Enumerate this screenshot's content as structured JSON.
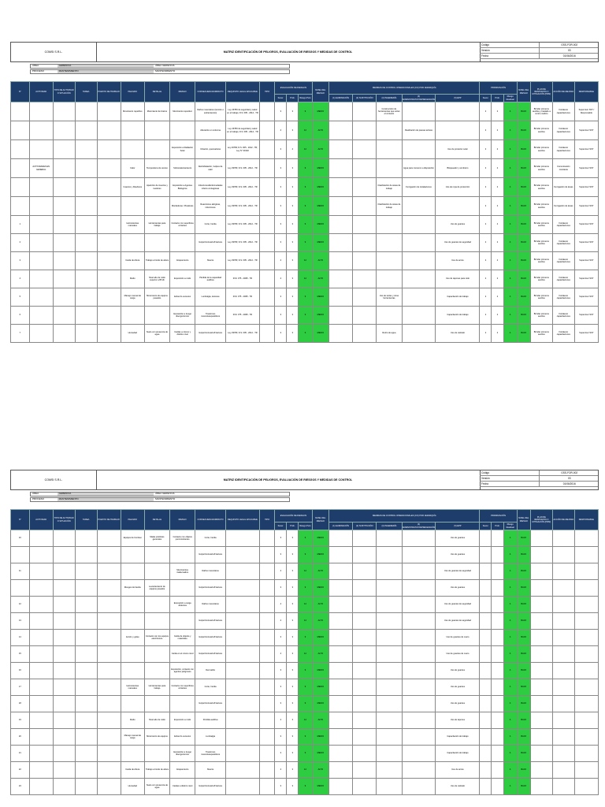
{
  "header": {
    "company": "COMSI S.R.L.",
    "title": "MATRIZ IDENTIFICACIÓN DE PELIGROS, EVALUACIÓN DE RIESGOS Y MEDIDAS DE CONTROL",
    "meta": [
      {
        "label": "Código",
        "value": "GSS-FOR-002"
      },
      {
        "label": "Versión",
        "value": "03"
      },
      {
        "label": "Fecha",
        "value": "01/06/2016"
      }
    ]
  },
  "info": {
    "row1": [
      "ÁREA",
      "GERENCIA",
      "ÁREA GERENCIA"
    ],
    "row2": [
      "PROCESO",
      "MANTENIMIENTO",
      "MANTENIMIENTO"
    ]
  },
  "columns": {
    "nro": "N°",
    "actividad": "ACTIVIDAD",
    "tipo": "TIPO DE ACTIVIDAD O SITUACIÓN",
    "tarea": "TAREA",
    "puesto": "PUESTO DE TRABAJO",
    "peligro": "PELIGRO",
    "detalle": "DETALLE",
    "riesgo": "RIESGO",
    "consecuencia": "CONSECUENCIA/IMPACTO",
    "requisito": "REQUISITO LEGAL APLICABLE",
    "tipo2": "TIPO",
    "evaluacion": "EVALUACIÓN DE RIESGOS",
    "sev": "Sever.",
    "prob": "Prob.",
    "rp": "Riesgo Puro",
    "nivel": "NIVEL DEL RIESGO",
    "medidas": "MEDIDAS DE CONTROL OPERACIONALES (CO) POR JERARQUÍA",
    "elim": "(1) ELIMINACIÓN",
    "sust": "(2) SUSTITUCIÓN",
    "ing": "(3) INGENIERÍA",
    "adm": "(4) ADMINISTRATIVOS/PREVENCIÓN",
    "epp": "(5) EPP",
    "prior": "PRIORIZACIÓN",
    "rr": "Riesgo Residual",
    "nivel2": "NIVEL DEL RIESGO",
    "planes": "PLAN DE RESPUESTA O MITIGACIÓN (PRM)",
    "accion": "ACCIÓN DE MEJORA",
    "resp": "RESPONSABLE"
  },
  "table1": [
    {
      "nro": "",
      "act": "",
      "pel": "Movimiento repetitivo",
      "det": "Movimiento de brazos",
      "rie": "Movimiento repetitivo",
      "con": "Daños musculares (tensión o estiramientos)",
      "req": "Ley 29783 de seguridad y salud en el trabajo; D.S. 005 - 2012 - TR",
      "s": "3",
      "p": "3",
      "v": "9",
      "n": "MEDIO",
      "ing": "Construcción de herramientas que eviten el contacto",
      "adm": "",
      "epp": "",
      "s2": "2",
      "p2": "2",
      "v2": "4",
      "n2": "BAJO",
      "pl": "Brindar primeros auxilios y traslado a centro médico",
      "ac": "Fortalecer capacitaciones",
      "rs": "Supervisor SST / Responsable"
    },
    {
      "nro": "",
      "act": "",
      "pel": "",
      "det": "",
      "rie": "",
      "con": "Alteración en columna",
      "req": "Ley 29783 de seguridad y salud en el trabajo; D.S. 005 - 2012 - TR",
      "s": "4",
      "p": "3",
      "v": "12",
      "n": "ALTO",
      "ing": "",
      "adm": "Realización de pausas activas",
      "epp": "",
      "s2": "2",
      "p2": "2",
      "v2": "4",
      "n2": "BAJO",
      "pl": "Brindar primeros auxilios",
      "ac": "Fortalecer capacitaciones",
      "rs": "Supervisor SST"
    },
    {
      "nro": "",
      "act": "",
      "pel": "",
      "det": "",
      "rie": "Exposición a Radiación Solar",
      "con": "Irritación, quemaduras",
      "req": "Ley 29783; D.S. 005 - 2012 - TR; Ley N° 30102",
      "s": "3",
      "p": "4",
      "v": "12",
      "n": "ALTO",
      "ing": "",
      "adm": "",
      "epp": "Uso de protector solar",
      "s2": "2",
      "p2": "2",
      "v2": "4",
      "n2": "BAJO",
      "pl": "Brindar primeros auxilios",
      "ac": "Fortalecer capacitaciones",
      "rs": "Supervisor SST"
    },
    {
      "nro": "",
      "act": "ACTIVIDADES EN GENERAL",
      "pel": "Calor",
      "det": "Temperatura de verano",
      "rie": "Sobrecalentamiento",
      "con": "Deshidratación, Golpes de calor",
      "req": "Ley 29783; D.S. 005 - 2012 - TR",
      "s": "3",
      "p": "3",
      "v": "9",
      "n": "MEDIO",
      "ing": "",
      "adm": "Agua para consumo a disposición",
      "epp": "Bloqueador y sombrero",
      "s2": "2",
      "p2": "2",
      "v2": "4",
      "n2": "BAJO",
      "pl": "Brindar primeros auxilios",
      "ac": "Comunicación constante",
      "rs": "Supervisor SST"
    },
    {
      "nro": "",
      "act": "",
      "pel": "Insectos y Roedores",
      "det": "Aparición de insectos y roedores",
      "rie": "Exposición a Agentes Biológicos",
      "con": "Infecciones/Enfermedades infecto contagiosas",
      "req": "Ley 29783; D.S. 005 - 2012 - TR",
      "s": "3",
      "p": "3",
      "v": "9",
      "n": "MEDIO",
      "ing": "Clasificación de áreas de trabajo",
      "adm": "Fumigación de instalaciones",
      "epp": "Uso de ropa de protección",
      "s2": "2",
      "p2": "2",
      "v2": "4",
      "n2": "BAJO",
      "pl": "Brindar primeros auxilios",
      "ac": "Fumigación de áreas",
      "rs": "Supervisor SST"
    },
    {
      "nro": "",
      "act": "",
      "pel": "",
      "det": "",
      "rie": "Mordeduras / Picaduras",
      "con": "Reacciones alérgicas, infecciones",
      "req": "Ley 29783; D.S. 005 - 2012 - TR",
      "s": "3",
      "p": "3",
      "v": "9",
      "n": "MEDIO",
      "ing": "Clasificación de áreas de trabajo",
      "adm": "",
      "epp": "",
      "s2": "2",
      "p2": "2",
      "v2": "4",
      "n2": "BAJO",
      "pl": "Brindar primeros auxilios",
      "ac": "Fumigación de áreas",
      "rs": "Supervisor SST"
    },
    {
      "nro": "1",
      "act": "",
      "pel": "Herramientas manuales",
      "det": "Herramientas para trabajo",
      "rie": "Contacto con superficies cortantes",
      "con": "Corte, herida",
      "req": "Ley 29783; D.S. 005 - 2012 - TR",
      "s": "3",
      "p": "3",
      "v": "9",
      "n": "MEDIO",
      "ing": "",
      "adm": "",
      "epp": "Uso de guantes",
      "s2": "2",
      "p2": "2",
      "v2": "4",
      "n2": "BAJO",
      "pl": "Brindar primeros auxilios",
      "ac": "Fortalecer capacitaciones",
      "rs": "Supervisor SST"
    },
    {
      "nro": "2",
      "act": "",
      "pel": "",
      "det": "",
      "rie": "",
      "con": "Golpe/Contusión/Fractura",
      "req": "Ley 29783; D.S. 005 - 2012 - TR",
      "s": "3",
      "p": "3",
      "v": "9",
      "n": "MEDIO",
      "ing": "",
      "adm": "",
      "epp": "Uso de guantes de seguridad",
      "s2": "2",
      "p2": "2",
      "v2": "4",
      "n2": "BAJO",
      "pl": "Brindar primeros auxilios",
      "ac": "Fortalecer capacitaciones",
      "rs": "Supervisor SST"
    },
    {
      "nro": "3",
      "act": "",
      "pel": "Caída de Altura",
      "det": "Trabajo a borde de altura",
      "rie": "Atrapamiento",
      "con": "Muerte",
      "req": "Ley 29783; D.S. 005 - 2012 - TR",
      "s": "4",
      "p": "3",
      "v": "12",
      "n": "ALTO",
      "ing": "",
      "adm": "",
      "epp": "Uso de arnés",
      "s2": "2",
      "p2": "2",
      "v2": "4",
      "n2": "BAJO",
      "pl": "Brindar primeros auxilios",
      "ac": "Fortalecer capacitaciones",
      "rs": "Supervisor SST"
    },
    {
      "nro": "4",
      "act": "",
      "pel": "Ruido",
      "det": "Nivel alto de ruido superior a 85 db",
      "rie": "Exposición a ruido",
      "con": "Pérdida de la capacidad auditiva",
      "req": "R.M. 375 - 2008 - TR",
      "s": "4",
      "p": "3",
      "v": "12",
      "n": "ALTO",
      "ing": "",
      "adm": "",
      "epp": "Uso de tapones para oído",
      "s2": "2",
      "p2": "2",
      "v2": "4",
      "n2": "BAJO",
      "pl": "Brindar primeros auxilios",
      "ac": "Fortalecer capacitaciones",
      "rs": "Supervisor SST"
    },
    {
      "nro": "5",
      "act": "",
      "pel": "Manejo manual de carga",
      "det": "Movimiento de equipos pesados",
      "rie": "Esfuerzo excesivo",
      "con": "Lumbalgia, lesiones",
      "req": "R.M. 375 - 2008 - TR",
      "s": "3",
      "p": "3",
      "v": "9",
      "n": "MEDIO",
      "ing": "Uso de tecles y otras herramientas",
      "adm": "",
      "epp": "Capacitación de trabajo",
      "s2": "2",
      "p2": "2",
      "v2": "4",
      "n2": "BAJO",
      "pl": "Brindar primeros auxilios",
      "ac": "Fortalecer capacitaciones",
      "rs": "Supervisor SST"
    },
    {
      "nro": "6",
      "act": "",
      "pel": "",
      "det": "",
      "rie": "Exposición a riesgo disergonómico",
      "con": "Trastornos musculoesqueléticos",
      "req": "R.M. 375 - 2008 - TR",
      "s": "3",
      "p": "3",
      "v": "9",
      "n": "MEDIO",
      "ing": "",
      "adm": "",
      "epp": "Capacitación de trabajo",
      "s2": "2",
      "p2": "2",
      "v2": "4",
      "n2": "BAJO",
      "pl": "Brindar primeros auxilios",
      "ac": "Fortalecer capacitaciones",
      "rs": "Supervisor SST"
    },
    {
      "nro": "7",
      "act": "",
      "pel": "Humedad",
      "det": "Suelo con presencia de agua",
      "rie": "Caídas a mismo y distinto nivel",
      "con": "Golpe/Contusión/Fractura",
      "req": "Ley 29783; D.S. 005 - 2012 - TR",
      "s": "3",
      "p": "3",
      "v": "9",
      "n": "MEDIO",
      "ing": "Retiro de agua",
      "adm": "",
      "epp": "Uso de calzado",
      "s2": "2",
      "p2": "2",
      "v2": "4",
      "n2": "BAJO",
      "pl": "Brindar primeros auxilios",
      "ac": "Fortalecer capacitaciones",
      "rs": "Supervisor SST"
    }
  ],
  "table2": [
    {
      "nro": "10",
      "pel": "Equipos de bombeo",
      "det": "Malas prácticas generales",
      "rie": "Contacto con objetos punzocortantes",
      "con": "Corte, herida",
      "s": "3",
      "p": "3",
      "v": "9",
      "n": "MEDIO",
      "epp": "Uso de guantes",
      "v2": "4",
      "n2": "BAJO"
    },
    {
      "nro": "",
      "pel": "",
      "det": "",
      "rie": "",
      "con": "Golpe/Contusión/Fractura",
      "s": "3",
      "p": "3",
      "v": "9",
      "n": "MEDIO",
      "epp": "Uso de guantes",
      "v2": "4",
      "n2": "BAJO"
    },
    {
      "nro": "11",
      "pel": "",
      "det": "",
      "rie": "Movimientos inadecuados",
      "con": "Daños musculares",
      "s": "4",
      "p": "3",
      "v": "12",
      "n": "ALTO",
      "epp": "Uso de guantes de seguridad",
      "v2": "4",
      "n2": "BAJO"
    },
    {
      "nro": "",
      "pel": "Riesgos de banda",
      "det": "Levantamiento de equipos pesados",
      "rie": "",
      "con": "Golpe/Contusión/Fractura",
      "s": "3",
      "p": "3",
      "v": "9",
      "n": "MEDIO",
      "epp": "Uso de guantes",
      "v2": "4",
      "n2": "BAJO"
    },
    {
      "nro": "12",
      "pel": "",
      "det": "",
      "rie": "Exposición a carga dinámica",
      "con": "Daños musculares",
      "s": "4",
      "p": "3",
      "v": "12",
      "n": "ALTO",
      "epp": "Uso de guantes de seguridad",
      "v2": "4",
      "n2": "BAJO"
    },
    {
      "nro": "13",
      "pel": "",
      "det": "",
      "rie": "",
      "con": "Golpe/Contusión/Fractura",
      "s": "4",
      "p": "3",
      "v": "12",
      "n": "ALTO",
      "epp": "Uso de guantes de seguridad",
      "v2": "4",
      "n2": "BAJO"
    },
    {
      "nro": "14",
      "pel": "Acción y golpe",
      "det": "Contacto con los equipos electrónicos",
      "rie": "Caída de objetos y materiales",
      "con": "Golpe/Contusión/Fractura",
      "s": "3",
      "p": "3",
      "v": "9",
      "n": "MEDIO",
      "epp": "Uso de guantes de cuero",
      "v2": "4",
      "n2": "BAJO"
    },
    {
      "nro": "15",
      "pel": "",
      "det": "",
      "rie": "Caída en el mismo nivel",
      "con": "Golpe/Contusión/Fractura",
      "s": "4",
      "p": "3",
      "v": "12",
      "n": "ALTO",
      "epp": "Uso de guantes de cuero",
      "v2": "4",
      "n2": "BAJO"
    },
    {
      "nro": "16",
      "pel": "",
      "det": "",
      "rie": "Exposición, contacto con agentes peligrosos",
      "con": "Dermatitis",
      "s": "3",
      "p": "3",
      "v": "9",
      "n": "MEDIO",
      "epp": "Uso de guantes",
      "v2": "4",
      "n2": "BAJO"
    },
    {
      "nro": "17",
      "pel": "Herramientas manuales",
      "det": "Herramientas para trabajo",
      "rie": "Contacto con superficies cortantes",
      "con": "Corte, herida",
      "s": "3",
      "p": "3",
      "v": "9",
      "n": "MEDIO",
      "epp": "Uso de guantes",
      "v2": "4",
      "n2": "BAJO"
    },
    {
      "nro": "18",
      "pel": "",
      "det": "",
      "rie": "",
      "con": "Golpe/Contusión/Fractura",
      "s": "3",
      "p": "3",
      "v": "9",
      "n": "MEDIO",
      "epp": "Uso de guantes",
      "v2": "4",
      "n2": "BAJO"
    },
    {
      "nro": "19",
      "pel": "Ruido",
      "det": "Nivel alto de ruido",
      "rie": "Exposición a ruido",
      "con": "Pérdida auditiva",
      "s": "4",
      "p": "3",
      "v": "12",
      "n": "ALTO",
      "epp": "Uso de tapones",
      "v2": "4",
      "n2": "BAJO"
    },
    {
      "nro": "20",
      "pel": "Manejo manual de carga",
      "det": "Movimiento de equipos",
      "rie": "Esfuerzo excesivo",
      "con": "Lumbalgia",
      "s": "3",
      "p": "3",
      "v": "9",
      "n": "MEDIO",
      "epp": "Capacitación de trabajo",
      "v2": "4",
      "n2": "BAJO"
    },
    {
      "nro": "21",
      "pel": "",
      "det": "",
      "rie": "Exposición a riesgo disergonómico",
      "con": "Trastornos musculoesqueléticos",
      "s": "3",
      "p": "3",
      "v": "9",
      "n": "MEDIO",
      "epp": "Capacitación de trabajo",
      "v2": "4",
      "n2": "BAJO"
    },
    {
      "nro": "22",
      "pel": "Caída de Altura",
      "det": "Trabajo a borde de altura",
      "rie": "Atrapamiento",
      "con": "Muerte",
      "s": "4",
      "p": "3",
      "v": "12",
      "n": "ALTO",
      "epp": "Uso de arnés",
      "v2": "4",
      "n2": "BAJO"
    },
    {
      "nro": "23",
      "pel": "Humedad",
      "det": "Suelo con presencia de agua",
      "rie": "Caídas a distinto nivel",
      "con": "Golpe/Contusión/Fractura",
      "s": "3",
      "p": "3",
      "v": "9",
      "n": "MEDIO",
      "epp": "Uso de calzado",
      "v2": "4",
      "n2": "BAJO"
    }
  ]
}
